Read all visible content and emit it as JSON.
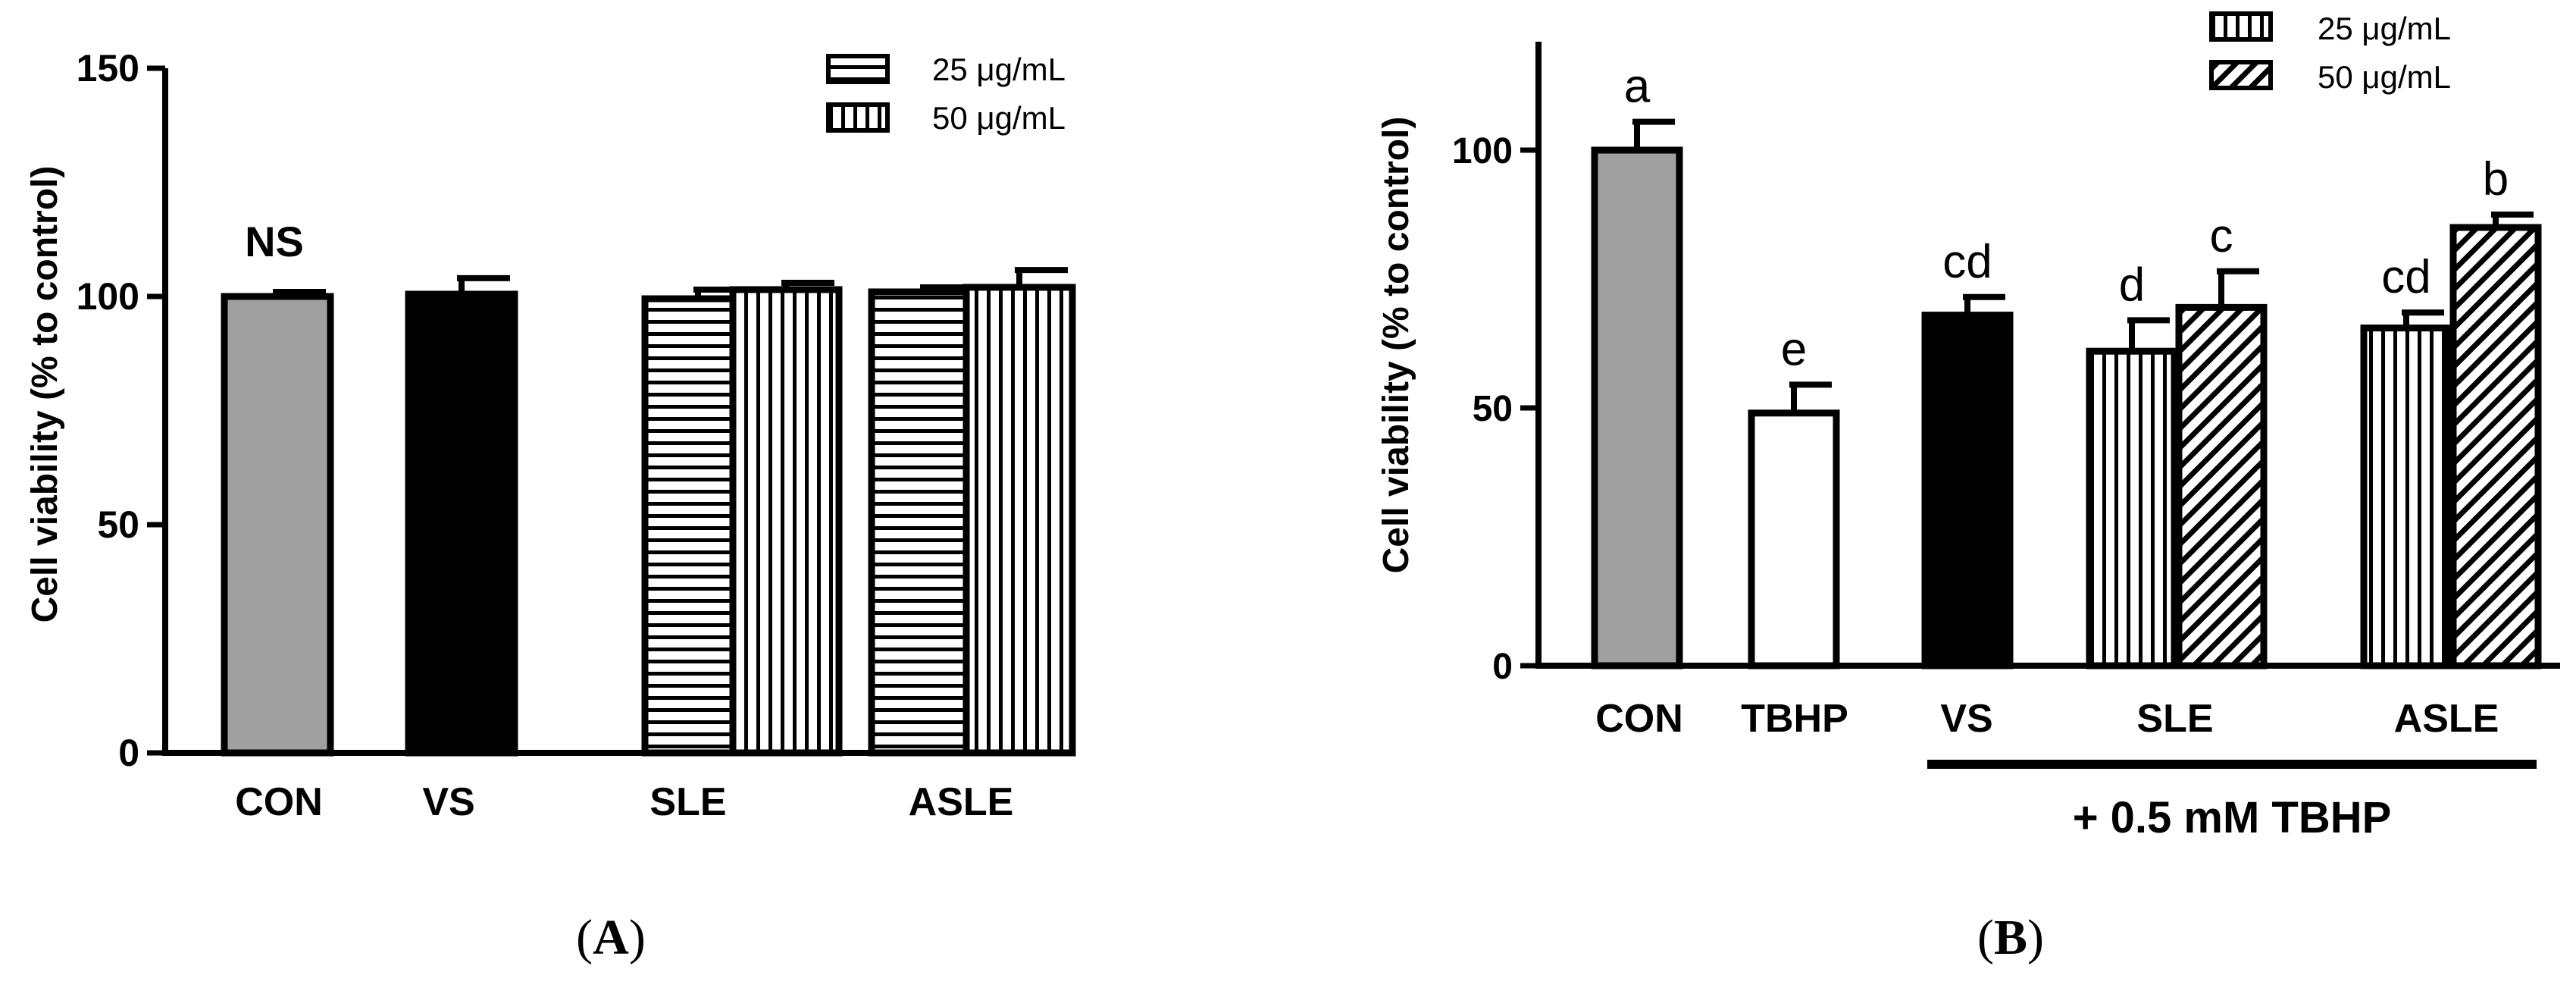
{
  "chart_data": [
    {
      "type": "bar",
      "panel_label": "A",
      "ylabel": "Cell viability (% to control)",
      "ylim": [
        0,
        150
      ],
      "yticks": [
        0,
        50,
        100,
        150
      ],
      "categories": [
        "CON",
        "VS",
        "SLE",
        "ASLE"
      ],
      "legend": [
        {
          "label": "25 μg/mL",
          "pattern": "horizontal-stripes"
        },
        {
          "label": "50  μg/mL",
          "pattern": "vertical-stripes"
        }
      ],
      "bars": [
        {
          "category": "CON",
          "value": 100,
          "error": 1,
          "fill": "#a0a0a0",
          "pattern": "solid"
        },
        {
          "category": "VS",
          "value": 100.5,
          "error": 3.5,
          "fill": "#000000",
          "pattern": "solid"
        },
        {
          "category": "SLE",
          "value": 99.5,
          "error": 2,
          "fill": "#ffffff",
          "pattern": "horizontal-stripes",
          "series": "25 μg/mL"
        },
        {
          "category": "SLE",
          "value": 101.5,
          "error": 1.5,
          "fill": "#ffffff",
          "pattern": "vertical-stripes",
          "series": "50  μg/mL"
        },
        {
          "category": "ASLE",
          "value": 101,
          "error": 1,
          "fill": "#ffffff",
          "pattern": "horizontal-stripes",
          "series": "25 μg/mL"
        },
        {
          "category": "ASLE",
          "value": 102,
          "error": 3.8,
          "fill": "#ffffff",
          "pattern": "vertical-stripes",
          "series": "50  μg/mL"
        }
      ],
      "annotations": [
        "NS"
      ]
    },
    {
      "type": "bar",
      "panel_label": "B",
      "ylabel": "Cell viability (% to control)",
      "ylim": [
        0,
        120
      ],
      "yticks": [
        0,
        50,
        100
      ],
      "categories": [
        "CON",
        "TBHP",
        "VS",
        "SLE",
        "ASLE"
      ],
      "treatment_label": "+ 0.5 mM TBHP",
      "legend": [
        {
          "label": "25 μg/mL",
          "pattern": "vertical-stripes"
        },
        {
          "label": "50 μg/mL",
          "pattern": "diagonal-stripes"
        }
      ],
      "bars": [
        {
          "category": "CON",
          "value": 100,
          "error": 5.5,
          "fill": "#a0a0a0",
          "pattern": "solid",
          "letter": "a"
        },
        {
          "category": "TBHP",
          "value": 49,
          "error": 5.5,
          "fill": "#ffffff",
          "pattern": "solid",
          "letter": "e"
        },
        {
          "category": "VS",
          "value": 68,
          "error": 3.5,
          "fill": "#000000",
          "pattern": "solid",
          "letter": "cd"
        },
        {
          "category": "SLE",
          "value": 61,
          "error": 6,
          "fill": "#ffffff",
          "pattern": "vertical-stripes",
          "series": "25 μg/mL",
          "letter": "d"
        },
        {
          "category": "SLE",
          "value": 69.5,
          "error": 7,
          "fill": "#ffffff",
          "pattern": "diagonal-stripes",
          "series": "50 μg/mL",
          "letter": "c"
        },
        {
          "category": "ASLE",
          "value": 65.5,
          "error": 3,
          "fill": "#ffffff",
          "pattern": "vertical-stripes",
          "series": "25 μg/mL",
          "letter": "cd"
        },
        {
          "category": "ASLE",
          "value": 85,
          "error": 2.5,
          "fill": "#ffffff",
          "pattern": "diagonal-stripes",
          "series": "50 μg/mL",
          "letter": "b"
        }
      ]
    }
  ],
  "panel_captions": {
    "a": "(A)",
    "a_letter": "A",
    "b": "(B)",
    "b_letter": "B"
  }
}
